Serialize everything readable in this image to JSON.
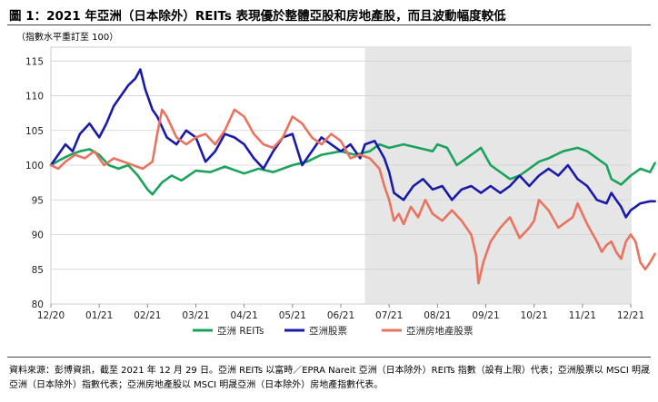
{
  "title": "圖 1：2021 年亞洲（日本除外）REITs 表現優於整體亞股和房地產股，而且波動幅度較低",
  "subtitle": "（指數水平重訂至 100）",
  "footnote": "資料來源：彭博資訊，截至 2021 年 12 月 29 日。亞洲 REITs 以富時／EPRA Nareit 亞洲（日本除外）REITs 指數（設有上限）代表；亞洲股票以 MSCI 明晟亞洲（日本除外）指數代表；亞洲房地產股以 MSCI 明晟亞洲（日本除外）房地產指數代表。",
  "chart_data": {
    "type": "line",
    "x_labels": [
      "12/20",
      "01/21",
      "02/21",
      "03/21",
      "04/21",
      "05/21",
      "06/21",
      "07/21",
      "08/21",
      "09/21",
      "10/21",
      "11/21",
      "12/21"
    ],
    "yticks": [
      80,
      85,
      90,
      95,
      100,
      105,
      110,
      115
    ],
    "ylim": [
      80,
      117
    ],
    "shaded_region": {
      "from_month": 6.5,
      "to_month": 12,
      "color": "#e6e6e6"
    },
    "grid": "horizontal",
    "legend_position": "bottom",
    "series": [
      {
        "name": "亞洲 REITs",
        "color": "#1aa35a",
        "points": [
          [
            0,
            100
          ],
          [
            0.2,
            100.8
          ],
          [
            0.4,
            101.5
          ],
          [
            0.6,
            102
          ],
          [
            0.8,
            102.3
          ],
          [
            1,
            101.5
          ],
          [
            1.2,
            100
          ],
          [
            1.4,
            99.5
          ],
          [
            1.6,
            100
          ],
          [
            1.8,
            98.5
          ],
          [
            2,
            96.5
          ],
          [
            2.1,
            95.8
          ],
          [
            2.3,
            97.5
          ],
          [
            2.5,
            98.5
          ],
          [
            2.7,
            97.8
          ],
          [
            3,
            99.2
          ],
          [
            3.3,
            99
          ],
          [
            3.6,
            99.8
          ],
          [
            4,
            98.8
          ],
          [
            4.3,
            99.5
          ],
          [
            4.6,
            99
          ],
          [
            5,
            100
          ],
          [
            5.3,
            100.5
          ],
          [
            5.6,
            101.5
          ],
          [
            6,
            102
          ],
          [
            6.3,
            101.5
          ],
          [
            6.6,
            102
          ],
          [
            6.8,
            103
          ],
          [
            7,
            102.5
          ],
          [
            7.3,
            103
          ],
          [
            7.6,
            102.5
          ],
          [
            7.9,
            102
          ],
          [
            8,
            103
          ],
          [
            8.2,
            102.5
          ],
          [
            8.4,
            100
          ],
          [
            8.6,
            101
          ],
          [
            8.9,
            102.5
          ],
          [
            9.1,
            100
          ],
          [
            9.3,
            99
          ],
          [
            9.5,
            98
          ],
          [
            9.7,
            98.5
          ],
          [
            9.9,
            99.5
          ],
          [
            10.1,
            100.5
          ],
          [
            10.3,
            101
          ],
          [
            10.6,
            102
          ],
          [
            10.9,
            102.5
          ],
          [
            11.1,
            102
          ],
          [
            11.3,
            101
          ],
          [
            11.5,
            100
          ],
          [
            11.6,
            98
          ],
          [
            11.8,
            97.2
          ],
          [
            12,
            98.5
          ],
          [
            12.2,
            99.5
          ],
          [
            12.4,
            99
          ],
          [
            12.5,
            100.3
          ]
        ]
      },
      {
        "name": "亞洲股票",
        "color": "#1a1aa8",
        "points": [
          [
            0,
            100
          ],
          [
            0.15,
            101.5
          ],
          [
            0.3,
            103
          ],
          [
            0.45,
            102
          ],
          [
            0.6,
            104.5
          ],
          [
            0.8,
            106
          ],
          [
            1,
            104
          ],
          [
            1.15,
            106
          ],
          [
            1.3,
            108.5
          ],
          [
            1.45,
            110
          ],
          [
            1.6,
            111.5
          ],
          [
            1.75,
            112.5
          ],
          [
            1.85,
            113.8
          ],
          [
            1.95,
            111
          ],
          [
            2.1,
            108
          ],
          [
            2.2,
            107
          ],
          [
            2.4,
            104
          ],
          [
            2.6,
            103
          ],
          [
            2.8,
            105
          ],
          [
            3,
            104
          ],
          [
            3.2,
            100.5
          ],
          [
            3.4,
            102
          ],
          [
            3.6,
            104.5
          ],
          [
            3.8,
            104
          ],
          [
            4,
            103
          ],
          [
            4.2,
            101
          ],
          [
            4.4,
            99.5
          ],
          [
            4.6,
            102
          ],
          [
            4.8,
            104
          ],
          [
            5,
            104.5
          ],
          [
            5.2,
            100
          ],
          [
            5.4,
            102
          ],
          [
            5.6,
            104
          ],
          [
            5.8,
            103
          ],
          [
            6,
            102
          ],
          [
            6.2,
            103
          ],
          [
            6.4,
            101
          ],
          [
            6.5,
            103
          ],
          [
            6.7,
            103.5
          ],
          [
            6.9,
            101
          ],
          [
            7,
            99
          ],
          [
            7.1,
            96
          ],
          [
            7.3,
            95
          ],
          [
            7.5,
            97
          ],
          [
            7.7,
            98
          ],
          [
            7.9,
            96.5
          ],
          [
            8.1,
            97
          ],
          [
            8.3,
            95
          ],
          [
            8.5,
            96.5
          ],
          [
            8.7,
            97
          ],
          [
            8.9,
            96
          ],
          [
            9.1,
            97
          ],
          [
            9.3,
            96
          ],
          [
            9.5,
            97
          ],
          [
            9.7,
            98.5
          ],
          [
            9.9,
            97
          ],
          [
            10.1,
            98.5
          ],
          [
            10.3,
            99.5
          ],
          [
            10.5,
            98.5
          ],
          [
            10.7,
            100
          ],
          [
            10.9,
            98
          ],
          [
            11.1,
            97
          ],
          [
            11.3,
            95
          ],
          [
            11.5,
            94.5
          ],
          [
            11.6,
            96
          ],
          [
            11.7,
            95
          ],
          [
            11.8,
            94
          ],
          [
            11.9,
            92.5
          ],
          [
            12,
            93.5
          ],
          [
            12.1,
            94
          ],
          [
            12.2,
            94.5
          ],
          [
            12.4,
            94.8
          ],
          [
            12.5,
            94.8
          ]
        ]
      },
      {
        "name": "亞洲房地產股票",
        "color": "#e8735f",
        "points": [
          [
            0,
            100
          ],
          [
            0.15,
            99.5
          ],
          [
            0.3,
            100.5
          ],
          [
            0.5,
            101.5
          ],
          [
            0.7,
            101
          ],
          [
            0.9,
            102
          ],
          [
            1.1,
            100
          ],
          [
            1.3,
            101
          ],
          [
            1.5,
            100.5
          ],
          [
            1.7,
            100
          ],
          [
            1.9,
            99.5
          ],
          [
            2.1,
            100.5
          ],
          [
            2.2,
            104.5
          ],
          [
            2.3,
            108
          ],
          [
            2.4,
            107
          ],
          [
            2.6,
            104
          ],
          [
            2.8,
            103
          ],
          [
            3,
            104
          ],
          [
            3.2,
            104.5
          ],
          [
            3.4,
            103
          ],
          [
            3.6,
            105
          ],
          [
            3.8,
            108
          ],
          [
            4,
            107
          ],
          [
            4.2,
            104.5
          ],
          [
            4.4,
            103
          ],
          [
            4.6,
            102.5
          ],
          [
            4.8,
            104
          ],
          [
            5,
            107
          ],
          [
            5.2,
            106
          ],
          [
            5.4,
            104
          ],
          [
            5.6,
            103
          ],
          [
            5.8,
            104.5
          ],
          [
            6,
            103.5
          ],
          [
            6.2,
            101
          ],
          [
            6.4,
            101.5
          ],
          [
            6.6,
            101
          ],
          [
            6.8,
            99.5
          ],
          [
            6.9,
            97
          ],
          [
            7,
            95
          ],
          [
            7.1,
            92
          ],
          [
            7.2,
            93
          ],
          [
            7.3,
            91.5
          ],
          [
            7.45,
            94
          ],
          [
            7.6,
            92.5
          ],
          [
            7.75,
            95
          ],
          [
            7.9,
            93
          ],
          [
            8.1,
            92
          ],
          [
            8.3,
            93.5
          ],
          [
            8.5,
            92
          ],
          [
            8.7,
            90
          ],
          [
            8.8,
            87
          ],
          [
            8.85,
            83
          ],
          [
            8.95,
            86
          ],
          [
            9.1,
            89
          ],
          [
            9.3,
            91
          ],
          [
            9.5,
            92.5
          ],
          [
            9.7,
            89.5
          ],
          [
            9.9,
            91
          ],
          [
            10,
            92
          ],
          [
            10.1,
            95
          ],
          [
            10.3,
            93.5
          ],
          [
            10.5,
            91
          ],
          [
            10.7,
            92
          ],
          [
            10.8,
            92.5
          ],
          [
            10.9,
            94.5
          ],
          [
            11,
            93
          ],
          [
            11.1,
            91.5
          ],
          [
            11.3,
            89
          ],
          [
            11.4,
            87.5
          ],
          [
            11.5,
            88.5
          ],
          [
            11.6,
            89
          ],
          [
            11.7,
            87.5
          ],
          [
            11.8,
            86.5
          ],
          [
            11.9,
            89
          ],
          [
            12,
            90
          ],
          [
            12.1,
            89
          ],
          [
            12.2,
            86
          ],
          [
            12.3,
            85
          ],
          [
            12.4,
            86
          ],
          [
            12.5,
            87.2
          ]
        ]
      }
    ]
  }
}
